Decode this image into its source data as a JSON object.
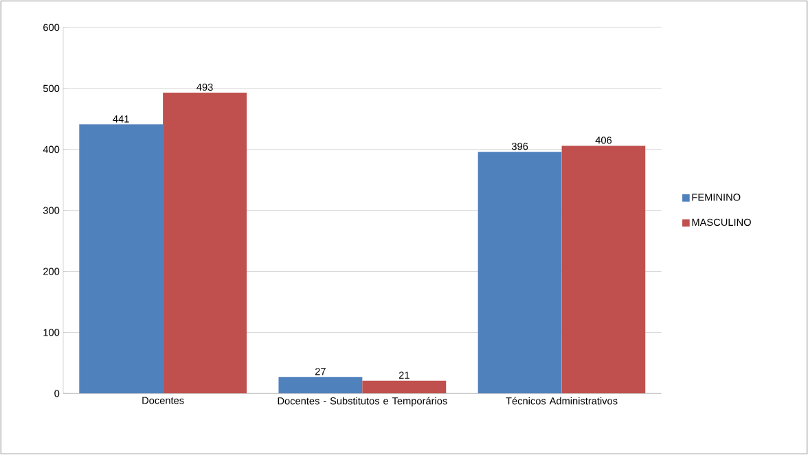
{
  "chart_data": {
    "type": "bar",
    "categories": [
      "Docentes",
      "Docentes - Substitutos e Temporários",
      "Técnicos Administrativos"
    ],
    "series": [
      {
        "name": "FEMININO",
        "color": "#4f81bd",
        "values": [
          441,
          27,
          396
        ]
      },
      {
        "name": "MASCULINO",
        "color": "#c0504d",
        "values": [
          493,
          21,
          406
        ]
      }
    ],
    "ylim": [
      0,
      600
    ],
    "yticks": [
      0,
      100,
      200,
      300,
      400,
      500,
      600
    ],
    "grid": "y",
    "legend": "right",
    "data_labels": true
  }
}
